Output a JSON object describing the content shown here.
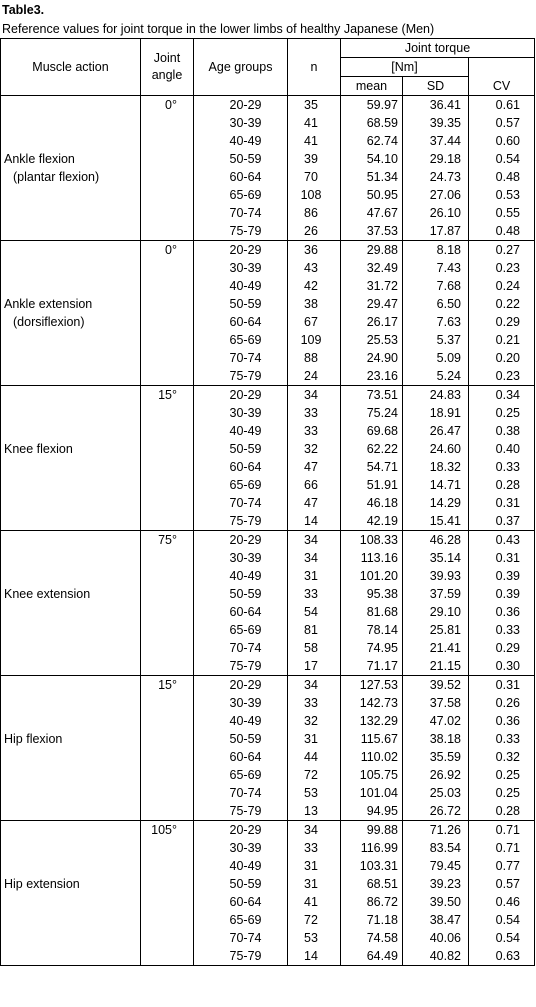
{
  "title": "Table3.",
  "subtitle": "Reference values for joint torque in the lower limbs  of healthy Japanese (Men)",
  "headers": {
    "muscle_action": "Muscle action",
    "joint_angle_line1": "Joint",
    "joint_angle_line2": "angle",
    "age_groups": "Age groups",
    "n": "n",
    "joint_torque": "Joint torque",
    "unit": "[Nm]",
    "mean": "mean",
    "sd": "SD",
    "cv": "CV"
  },
  "groups": [
    {
      "muscle_line1": "",
      "muscle_line2": "",
      "angle": "0°",
      "muscle_label_row": 3,
      "muscle_name": "Ankle flexion",
      "muscle_sub": "(plantar flexion)",
      "rows": [
        [
          "20-29",
          "35",
          "59.97",
          "36.41",
          "0.61"
        ],
        [
          "30-39",
          "41",
          "68.59",
          "39.35",
          "0.57"
        ],
        [
          "40-49",
          "41",
          "62.74",
          "37.44",
          "0.60"
        ],
        [
          "50-59",
          "39",
          "54.10",
          "29.18",
          "0.54"
        ],
        [
          "60-64",
          "70",
          "51.34",
          "24.73",
          "0.48"
        ],
        [
          "65-69",
          "108",
          "50.95",
          "27.06",
          "0.53"
        ],
        [
          "70-74",
          "86",
          "47.67",
          "26.10",
          "0.55"
        ],
        [
          "75-79",
          "26",
          "37.53",
          "17.87",
          "0.48"
        ]
      ]
    },
    {
      "angle": "0°",
      "muscle_name": "Ankle extension",
      "muscle_sub": "(dorsiflexion)",
      "rows": [
        [
          "20-29",
          "36",
          "29.88",
          "8.18",
          "0.27"
        ],
        [
          "30-39",
          "43",
          "32.49",
          "7.43",
          "0.23"
        ],
        [
          "40-49",
          "42",
          "31.72",
          "7.68",
          "0.24"
        ],
        [
          "50-59",
          "38",
          "29.47",
          "6.50",
          "0.22"
        ],
        [
          "60-64",
          "67",
          "26.17",
          "7.63",
          "0.29"
        ],
        [
          "65-69",
          "109",
          "25.53",
          "5.37",
          "0.21"
        ],
        [
          "70-74",
          "88",
          "24.90",
          "5.09",
          "0.20"
        ],
        [
          "75-79",
          "24",
          "23.16",
          "5.24",
          "0.23"
        ]
      ]
    },
    {
      "angle": "15°",
      "muscle_name": "Knee flexion",
      "muscle_sub": "",
      "rows": [
        [
          "20-29",
          "34",
          "73.51",
          "24.83",
          "0.34"
        ],
        [
          "30-39",
          "33",
          "75.24",
          "18.91",
          "0.25"
        ],
        [
          "40-49",
          "33",
          "69.68",
          "26.47",
          "0.38"
        ],
        [
          "50-59",
          "32",
          "62.22",
          "24.60",
          "0.40"
        ],
        [
          "60-64",
          "47",
          "54.71",
          "18.32",
          "0.33"
        ],
        [
          "65-69",
          "66",
          "51.91",
          "14.71",
          "0.28"
        ],
        [
          "70-74",
          "47",
          "46.18",
          "14.29",
          "0.31"
        ],
        [
          "75-79",
          "14",
          "42.19",
          "15.41",
          "0.37"
        ]
      ]
    },
    {
      "angle": "75°",
      "muscle_name": "Knee extension",
      "muscle_sub": "",
      "rows": [
        [
          "20-29",
          "34",
          "108.33",
          "46.28",
          "0.43"
        ],
        [
          "30-39",
          "34",
          "113.16",
          "35.14",
          "0.31"
        ],
        [
          "40-49",
          "31",
          "101.20",
          "39.93",
          "0.39"
        ],
        [
          "50-59",
          "33",
          "95.38",
          "37.59",
          "0.39"
        ],
        [
          "60-64",
          "54",
          "81.68",
          "29.10",
          "0.36"
        ],
        [
          "65-69",
          "81",
          "78.14",
          "25.81",
          "0.33"
        ],
        [
          "70-74",
          "58",
          "74.95",
          "21.41",
          "0.29"
        ],
        [
          "75-79",
          "17",
          "71.17",
          "21.15",
          "0.30"
        ]
      ]
    },
    {
      "angle": "15°",
      "muscle_name": "Hip flexion",
      "muscle_sub": "",
      "rows": [
        [
          "20-29",
          "34",
          "127.53",
          "39.52",
          "0.31"
        ],
        [
          "30-39",
          "33",
          "142.73",
          "37.58",
          "0.26"
        ],
        [
          "40-49",
          "32",
          "132.29",
          "47.02",
          "0.36"
        ],
        [
          "50-59",
          "31",
          "115.67",
          "38.18",
          "0.33"
        ],
        [
          "60-64",
          "44",
          "110.02",
          "35.59",
          "0.32"
        ],
        [
          "65-69",
          "72",
          "105.75",
          "26.92",
          "0.25"
        ],
        [
          "70-74",
          "53",
          "101.04",
          "25.03",
          "0.25"
        ],
        [
          "75-79",
          "13",
          "94.95",
          "26.72",
          "0.28"
        ]
      ]
    },
    {
      "angle": "105°",
      "muscle_name": "Hip extension",
      "muscle_sub": "",
      "rows": [
        [
          "20-29",
          "34",
          "99.88",
          "71.26",
          "0.71"
        ],
        [
          "30-39",
          "33",
          "116.99",
          "83.54",
          "0.71"
        ],
        [
          "40-49",
          "31",
          "103.31",
          "79.45",
          "0.77"
        ],
        [
          "50-59",
          "31",
          "68.51",
          "39.23",
          "0.57"
        ],
        [
          "60-64",
          "41",
          "86.72",
          "39.50",
          "0.46"
        ],
        [
          "65-69",
          "72",
          "71.18",
          "38.47",
          "0.54"
        ],
        [
          "70-74",
          "53",
          "74.58",
          "40.06",
          "0.54"
        ],
        [
          "75-79",
          "14",
          "64.49",
          "40.82",
          "0.63"
        ]
      ]
    }
  ]
}
